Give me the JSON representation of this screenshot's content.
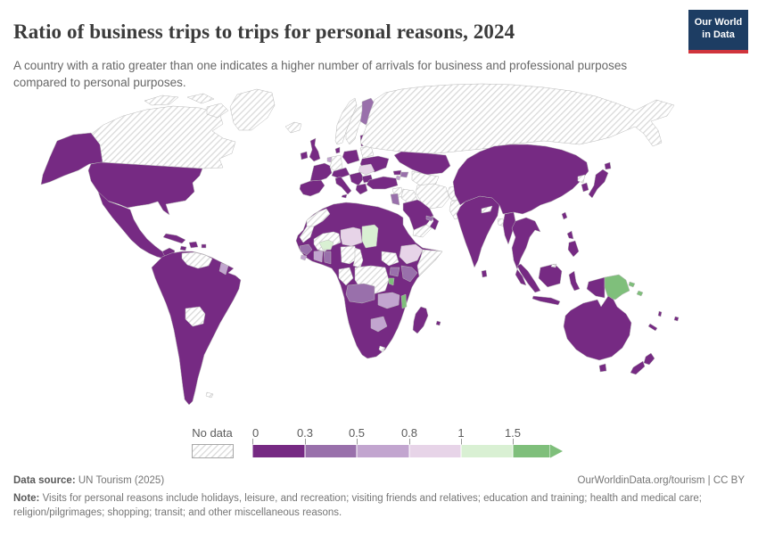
{
  "header": {
    "title": "Ratio of business trips to trips for personal reasons, 2024",
    "subtitle": "A country with a ratio greater than one indicates a higher number of arrivals for business and professional purposes compared to personal purposes.",
    "logo_line1": "Our World",
    "logo_line2": "in Data",
    "logo_bg_color": "#1d3d63",
    "logo_accent_color": "#d0343c"
  },
  "legend": {
    "no_data_label": "No data",
    "ticks": [
      "0",
      "0.3",
      "0.5",
      "0.8",
      "1",
      "1.5"
    ]
  },
  "footer": {
    "source_label": "Data source:",
    "source_value": " UN Tourism (2025)",
    "attribution": "OurWorldinData.org/tourism | CC BY",
    "note_label": "Note:",
    "note_text": " Visits for personal reasons include holidays, leisure, and recreation; visiting friends and relatives; education and training; health and medical care; religion/pilgrimages; shopping; transit; and other miscellaneous reasons."
  },
  "chart_data": {
    "type": "choropleth",
    "title": "Ratio of business trips to trips for personal reasons",
    "year": 2024,
    "unit": "ratio (business arrivals / personal arrivals)",
    "legend_position": "bottom",
    "no_data_style": "diagonal-hatch",
    "bins": [
      {
        "label": "0–0.3",
        "min": 0,
        "max": 0.3,
        "color": "#762a83"
      },
      {
        "label": "0.3–0.5",
        "min": 0.3,
        "max": 0.5,
        "color": "#9970ab"
      },
      {
        "label": "0.5–0.8",
        "min": 0.5,
        "max": 0.8,
        "color": "#c2a5cf"
      },
      {
        "label": "0.8–1",
        "min": 0.8,
        "max": 1,
        "color": "#e7d4e8"
      },
      {
        "label": "1–1.5",
        "min": 1,
        "max": 1.5,
        "color": "#d9f0d3"
      },
      {
        "label": "1.5+",
        "min": 1.5,
        "max": null,
        "color": "#7fbf7b"
      }
    ],
    "regions": [
      {
        "name": "Canada",
        "bin": "No data"
      },
      {
        "name": "Greenland",
        "bin": "No data"
      },
      {
        "name": "Iceland",
        "bin": "No data"
      },
      {
        "name": "Norway",
        "bin": "No data"
      },
      {
        "name": "Sweden",
        "bin": "No data"
      },
      {
        "name": "Germany",
        "bin": "No data"
      },
      {
        "name": "Belarus",
        "bin": "No data"
      },
      {
        "name": "Russia",
        "bin": "No data"
      },
      {
        "name": "Venezuela",
        "bin": "No data"
      },
      {
        "name": "Bolivia",
        "bin": "No data"
      },
      {
        "name": "Falkland Islands",
        "bin": "No data"
      },
      {
        "name": "Morocco",
        "bin": "No data"
      },
      {
        "name": "Western Sahara",
        "bin": "No data"
      },
      {
        "name": "Mali",
        "bin": "No data"
      },
      {
        "name": "Nigeria",
        "bin": "No data"
      },
      {
        "name": "Cameroon",
        "bin": "No data"
      },
      {
        "name": "Congo",
        "bin": "No data"
      },
      {
        "name": "Democratic Republic of Congo",
        "bin": "No data"
      },
      {
        "name": "South Sudan",
        "bin": "No data"
      },
      {
        "name": "Somalia",
        "bin": "No data"
      },
      {
        "name": "Lesotho",
        "bin": "No data"
      },
      {
        "name": "Syria",
        "bin": "No data"
      },
      {
        "name": "Iraq",
        "bin": "No data"
      },
      {
        "name": "Yemen",
        "bin": "No data"
      },
      {
        "name": "Iran",
        "bin": "No data"
      },
      {
        "name": "Afghanistan",
        "bin": "No data"
      },
      {
        "name": "Pakistan",
        "bin": "No data"
      },
      {
        "name": "Turkmenistan",
        "bin": "No data"
      },
      {
        "name": "Uzbekistan",
        "bin": "No data"
      },
      {
        "name": "Nepal",
        "bin": "No data"
      },
      {
        "name": "Bangladesh",
        "bin": "No data"
      },
      {
        "name": "North Korea",
        "bin": "No data"
      },
      {
        "name": "Brunei",
        "bin": "No data"
      },
      {
        "name": "United States",
        "bin": "0–0.3"
      },
      {
        "name": "Mexico",
        "bin": "0–0.3"
      },
      {
        "name": "Guatemala",
        "bin": "0–0.3"
      },
      {
        "name": "Panama",
        "bin": "0–0.3"
      },
      {
        "name": "Cuba",
        "bin": "0–0.3"
      },
      {
        "name": "Jamaica",
        "bin": "0–0.3"
      },
      {
        "name": "Dominican Republic",
        "bin": "0–0.3"
      },
      {
        "name": "Puerto Rico",
        "bin": "0–0.3"
      },
      {
        "name": "Colombia",
        "bin": "0–0.3"
      },
      {
        "name": "Ecuador",
        "bin": "0–0.3"
      },
      {
        "name": "Peru",
        "bin": "0–0.3"
      },
      {
        "name": "Brazil",
        "bin": "0–0.3"
      },
      {
        "name": "Guyana",
        "bin": "0–0.3"
      },
      {
        "name": "French Guiana",
        "bin": "0–0.3"
      },
      {
        "name": "Paraguay",
        "bin": "0–0.3"
      },
      {
        "name": "Uruguay",
        "bin": "0–0.3"
      },
      {
        "name": "Argentina",
        "bin": "0–0.3"
      },
      {
        "name": "Chile",
        "bin": "0–0.3"
      },
      {
        "name": "Ireland",
        "bin": "0–0.3"
      },
      {
        "name": "United Kingdom",
        "bin": "0–0.3"
      },
      {
        "name": "France",
        "bin": "0–0.3"
      },
      {
        "name": "Spain",
        "bin": "0–0.3"
      },
      {
        "name": "Portugal",
        "bin": "0–0.3"
      },
      {
        "name": "Denmark",
        "bin": "0–0.3"
      },
      {
        "name": "Poland",
        "bin": "0–0.3"
      },
      {
        "name": "Lithuania",
        "bin": "0–0.3"
      },
      {
        "name": "Czechia",
        "bin": "0–0.3"
      },
      {
        "name": "Ukraine",
        "bin": "0–0.3"
      },
      {
        "name": "Italy",
        "bin": "0–0.3"
      },
      {
        "name": "Serbia",
        "bin": "0–0.3"
      },
      {
        "name": "Bulgaria",
        "bin": "0–0.3"
      },
      {
        "name": "Greece",
        "bin": "0–0.3"
      },
      {
        "name": "Turkey",
        "bin": "0–0.3"
      },
      {
        "name": "Georgia",
        "bin": "0–0.3"
      },
      {
        "name": "Kazakhstan",
        "bin": "0–0.3"
      },
      {
        "name": "Saudi Arabia",
        "bin": "0–0.3"
      },
      {
        "name": "Kuwait",
        "bin": "0–0.3"
      },
      {
        "name": "Oman",
        "bin": "0–0.3"
      },
      {
        "name": "Egypt",
        "bin": "0–0.3"
      },
      {
        "name": "Algeria",
        "bin": "0–0.3"
      },
      {
        "name": "Tunisia",
        "bin": "0–0.3"
      },
      {
        "name": "Libya",
        "bin": "0–0.3"
      },
      {
        "name": "Mauritania",
        "bin": "0–0.3"
      },
      {
        "name": "Senegal",
        "bin": "0–0.3"
      },
      {
        "name": "Sudan",
        "bin": "0–0.3"
      },
      {
        "name": "Central African Republic",
        "bin": "0–0.3"
      },
      {
        "name": "Tanzania",
        "bin": "0–0.3"
      },
      {
        "name": "Mozambique",
        "bin": "0–0.3"
      },
      {
        "name": "Zimbabwe",
        "bin": "0–0.3"
      },
      {
        "name": "Namibia",
        "bin": "0–0.3"
      },
      {
        "name": "South Africa",
        "bin": "0–0.3"
      },
      {
        "name": "Madagascar",
        "bin": "0–0.3"
      },
      {
        "name": "Mauritius",
        "bin": "0–0.3"
      },
      {
        "name": "India",
        "bin": "0–0.3"
      },
      {
        "name": "Sri Lanka",
        "bin": "0–0.3"
      },
      {
        "name": "China",
        "bin": "0–0.3"
      },
      {
        "name": "Mongolia",
        "bin": "0–0.3"
      },
      {
        "name": "South Korea",
        "bin": "0–0.3"
      },
      {
        "name": "Japan",
        "bin": "0–0.3"
      },
      {
        "name": "Taiwan",
        "bin": "0–0.3"
      },
      {
        "name": "Myanmar",
        "bin": "0–0.3"
      },
      {
        "name": "Thailand",
        "bin": "0–0.3"
      },
      {
        "name": "Laos",
        "bin": "0–0.3"
      },
      {
        "name": "Vietnam",
        "bin": "0–0.3"
      },
      {
        "name": "Cambodia",
        "bin": "0–0.3"
      },
      {
        "name": "Malaysia",
        "bin": "0–0.3"
      },
      {
        "name": "Indonesia",
        "bin": "0–0.3"
      },
      {
        "name": "Philippines",
        "bin": "0–0.3"
      },
      {
        "name": "Australia",
        "bin": "0–0.3"
      },
      {
        "name": "New Zealand",
        "bin": "0–0.3"
      },
      {
        "name": "Fiji",
        "bin": "0–0.3"
      },
      {
        "name": "New Caledonia",
        "bin": "0–0.3"
      },
      {
        "name": "Vanuatu",
        "bin": "0–0.3"
      },
      {
        "name": "Finland",
        "bin": "0.3–0.5"
      },
      {
        "name": "Azerbaijan",
        "bin": "0.3–0.5"
      },
      {
        "name": "Jordan",
        "bin": "0.3–0.5"
      },
      {
        "name": "United Arab Emirates",
        "bin": "0.3–0.5"
      },
      {
        "name": "Guinea",
        "bin": "0.3–0.5"
      },
      {
        "name": "Ghana",
        "bin": "0.3–0.5"
      },
      {
        "name": "Uganda",
        "bin": "0.3–0.5"
      },
      {
        "name": "Kenya",
        "bin": "0.3–0.5"
      },
      {
        "name": "Angola",
        "bin": "0.3–0.5"
      },
      {
        "name": "Netherlands",
        "bin": "0.5–0.8"
      },
      {
        "name": "Armenia",
        "bin": "0.5–0.8"
      },
      {
        "name": "Suriname",
        "bin": "0.5–0.8"
      },
      {
        "name": "Sierra Leone",
        "bin": "0.5–0.8"
      },
      {
        "name": "Cote d'Ivoire",
        "bin": "0.5–0.8"
      },
      {
        "name": "Zambia",
        "bin": "0.5–0.8"
      },
      {
        "name": "Botswana",
        "bin": "0.5–0.8"
      },
      {
        "name": "Romania",
        "bin": "0.8–1"
      },
      {
        "name": "Niger",
        "bin": "0.8–1"
      },
      {
        "name": "Ethiopia",
        "bin": "0.8–1"
      },
      {
        "name": "Chad",
        "bin": "1–1.5"
      },
      {
        "name": "Burkina Faso",
        "bin": "1–1.5"
      },
      {
        "name": "Rwanda",
        "bin": "1.5+"
      },
      {
        "name": "Malawi",
        "bin": "1.5+"
      },
      {
        "name": "Papua New Guinea",
        "bin": "1.5+"
      },
      {
        "name": "Solomon Islands",
        "bin": "1.5+"
      }
    ]
  }
}
